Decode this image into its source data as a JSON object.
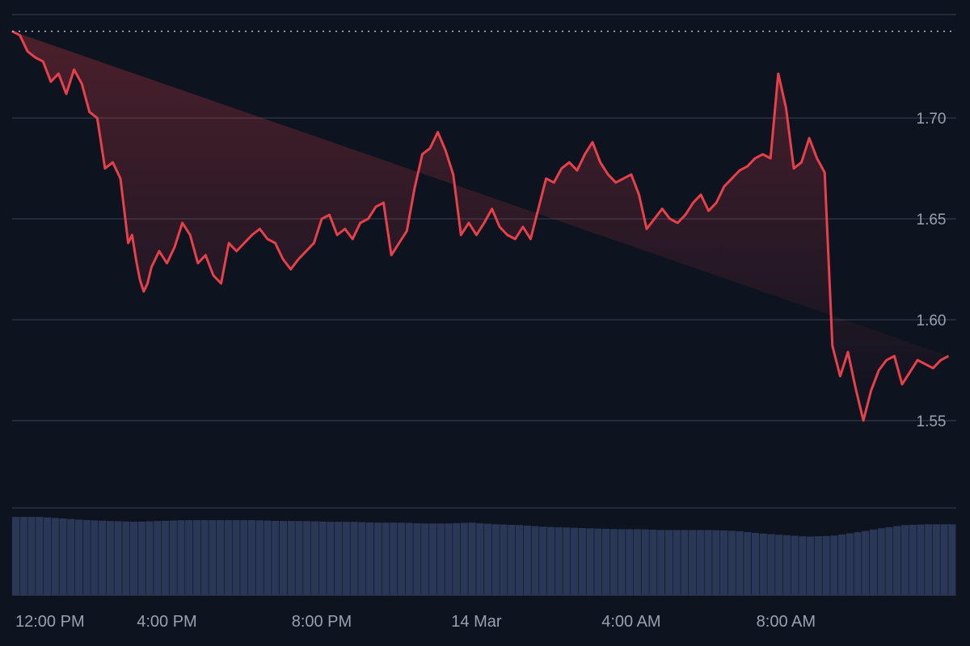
{
  "colors": {
    "background": "#0e1320",
    "grid": "#2c3240",
    "price_line": "#e8404a",
    "area_top": "#e8404a",
    "volume_bar": "#2b3756",
    "axis_text": "#9aa0ae",
    "last_price_line": "#b9bec8"
  },
  "chart_data": {
    "type": "line",
    "x_ticks": [
      "12:00 PM",
      "4:00 PM",
      "8:00 PM",
      "14 Mar",
      "4:00 AM",
      "8:00 AM"
    ],
    "x_tick_hours": [
      0,
      4,
      8,
      12,
      16,
      20
    ],
    "x_range_hours": [
      0,
      24.4
    ],
    "y_ticks": [
      "1.55",
      "1.60",
      "1.65",
      "1.70"
    ],
    "y_tick_values": [
      1.55,
      1.6,
      1.65,
      1.7
    ],
    "ylim": [
      1.5067,
      1.7433
    ],
    "reference_price": 1.743,
    "grid": true,
    "x_hours": [
      0,
      0.2,
      0.4,
      0.6,
      0.8,
      1.0,
      1.2,
      1.4,
      1.6,
      1.8,
      2.0,
      2.2,
      2.4,
      2.6,
      2.8,
      3.0,
      3.1,
      3.2,
      3.3,
      3.4,
      3.5,
      3.6,
      3.8,
      4.0,
      4.2,
      4.4,
      4.6,
      4.8,
      5.0,
      5.2,
      5.4,
      5.6,
      5.8,
      6.0,
      6.2,
      6.4,
      6.6,
      6.8,
      7.0,
      7.2,
      7.4,
      7.6,
      7.8,
      8.0,
      8.2,
      8.4,
      8.6,
      8.8,
      9.0,
      9.2,
      9.4,
      9.6,
      9.8,
      10.0,
      10.2,
      10.4,
      10.6,
      10.8,
      11.0,
      11.2,
      11.4,
      11.6,
      11.8,
      12.0,
      12.2,
      12.4,
      12.6,
      12.8,
      13.0,
      13.2,
      13.4,
      13.6,
      13.8,
      14.0,
      14.2,
      14.4,
      14.6,
      14.8,
      15.0,
      15.2,
      15.4,
      15.6,
      15.8,
      16.0,
      16.2,
      16.4,
      16.6,
      16.8,
      17.0,
      17.2,
      17.4,
      17.6,
      17.8,
      18.0,
      18.2,
      18.4,
      18.6,
      18.8,
      19.0,
      19.2,
      19.4,
      19.6,
      19.8,
      20.0,
      20.2,
      20.4,
      20.6,
      20.8,
      21.0,
      21.2,
      21.4,
      21.6,
      21.8,
      22.0,
      22.2,
      22.4,
      22.6,
      22.8,
      23.0,
      23.2,
      23.4,
      23.6,
      23.8,
      24.0,
      24.2,
      24.4
    ],
    "series": [
      {
        "values": [
          1.743,
          1.741,
          1.733,
          1.73,
          1.728,
          1.718,
          1.722,
          1.712,
          1.724,
          1.717,
          1.703,
          1.7,
          1.675,
          1.678,
          1.67,
          1.638,
          1.642,
          1.63,
          1.62,
          1.614,
          1.618,
          1.626,
          1.634,
          1.628,
          1.636,
          1.648,
          1.642,
          1.628,
          1.632,
          1.622,
          1.618,
          1.638,
          1.634,
          1.638,
          1.642,
          1.645,
          1.64,
          1.638,
          1.63,
          1.625,
          1.63,
          1.634,
          1.638,
          1.65,
          1.652,
          1.642,
          1.645,
          1.64,
          1.648,
          1.65,
          1.656,
          1.658,
          1.632,
          1.638,
          1.644,
          1.665,
          1.682,
          1.685,
          1.693,
          1.684,
          1.672,
          1.642,
          1.648,
          1.642,
          1.648,
          1.655,
          1.646,
          1.642,
          1.64,
          1.646,
          1.64,
          1.655,
          1.67,
          1.668,
          1.675,
          1.678,
          1.674,
          1.682,
          1.688,
          1.678,
          1.672,
          1.668,
          1.67,
          1.672,
          1.662,
          1.645,
          1.65,
          1.655,
          1.65,
          1.648,
          1.652,
          1.658,
          1.662,
          1.654,
          1.658,
          1.666,
          1.67,
          1.674,
          1.676,
          1.68,
          1.682,
          1.68,
          1.722,
          1.705,
          1.675,
          1.678,
          1.69,
          1.68,
          1.673,
          1.587,
          1.572,
          1.584,
          1.566,
          1.55,
          1.565,
          1.575,
          1.58,
          1.582,
          1.568,
          1.574,
          1.58,
          1.578,
          1.576,
          1.58,
          1.582
        ]
      }
    ],
    "volume_levels": [
      0.95,
      0.95,
      0.93,
      0.91,
      0.9,
      0.89,
      0.9,
      0.91,
      0.91,
      0.91,
      0.91,
      0.9,
      0.9,
      0.89,
      0.89,
      0.88,
      0.88,
      0.87,
      0.87,
      0.88,
      0.86,
      0.85,
      0.83,
      0.82,
      0.81,
      0.8,
      0.8,
      0.79,
      0.79,
      0.79,
      0.78,
      0.75,
      0.73,
      0.71,
      0.72,
      0.76,
      0.81,
      0.85,
      0.86,
      0.86
    ],
    "volume_max_fraction": 1.0
  }
}
